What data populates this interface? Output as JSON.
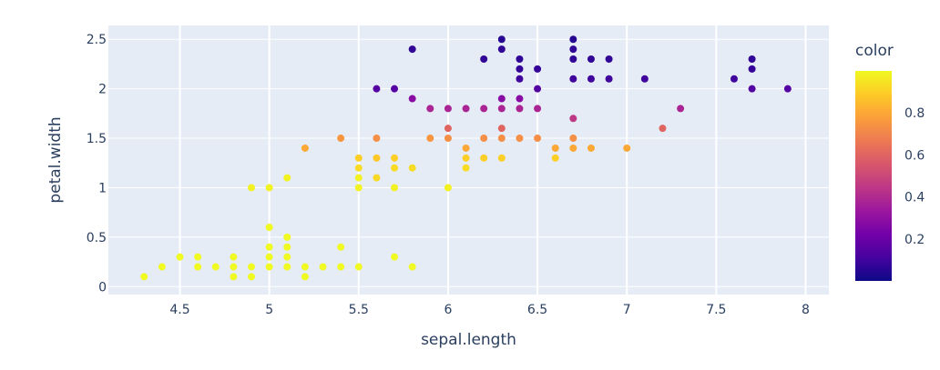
{
  "chart_data": {
    "type": "scatter",
    "title": "",
    "xlabel": "sepal.length",
    "ylabel": "petal.width",
    "xlim": [
      4.1,
      8.13
    ],
    "ylim": [
      -0.08,
      2.64
    ],
    "xticks": [
      4.5,
      5,
      5.5,
      6,
      6.5,
      7,
      7.5,
      8
    ],
    "xtick_labels": [
      "4.5",
      "5",
      "5.5",
      "6",
      "6.5",
      "7",
      "7.5",
      "8"
    ],
    "yticks": [
      0,
      0.5,
      1,
      1.5,
      2,
      2.5
    ],
    "ytick_labels": [
      "0",
      "0.5",
      "1",
      "1.5",
      "2",
      "2.5"
    ],
    "colorbar": {
      "title": "color",
      "range": [
        0,
        1
      ],
      "ticks": [
        0.2,
        0.4,
        0.6,
        0.8
      ],
      "tick_labels": [
        "0.2",
        "0.4",
        "0.6",
        "0.8"
      ],
      "colors": [
        "#0d0887",
        "#46039f",
        "#7201a8",
        "#9c179e",
        "#bd3786",
        "#d8576b",
        "#ed7953",
        "#fb9f3a",
        "#fdca26",
        "#f0f921"
      ]
    },
    "points": [
      {
        "x": 4.3,
        "y": 0.1,
        "c": 1.0
      },
      {
        "x": 4.4,
        "y": 0.2,
        "c": 1.0
      },
      {
        "x": 4.5,
        "y": 0.3,
        "c": 1.0
      },
      {
        "x": 4.6,
        "y": 0.3,
        "c": 1.0
      },
      {
        "x": 4.6,
        "y": 0.2,
        "c": 1.0
      },
      {
        "x": 4.7,
        "y": 0.2,
        "c": 1.0
      },
      {
        "x": 4.8,
        "y": 0.3,
        "c": 1.0
      },
      {
        "x": 4.8,
        "y": 0.2,
        "c": 1.0
      },
      {
        "x": 4.8,
        "y": 0.1,
        "c": 1.0
      },
      {
        "x": 4.9,
        "y": 0.2,
        "c": 1.0
      },
      {
        "x": 4.9,
        "y": 0.1,
        "c": 1.0
      },
      {
        "x": 4.9,
        "y": 1.0,
        "c": 0.98
      },
      {
        "x": 5.0,
        "y": 0.2,
        "c": 1.0
      },
      {
        "x": 5.0,
        "y": 0.3,
        "c": 1.0
      },
      {
        "x": 5.0,
        "y": 0.4,
        "c": 1.0
      },
      {
        "x": 5.0,
        "y": 0.6,
        "c": 1.0
      },
      {
        "x": 5.0,
        "y": 1.0,
        "c": 0.98
      },
      {
        "x": 5.1,
        "y": 0.2,
        "c": 1.0
      },
      {
        "x": 5.1,
        "y": 0.3,
        "c": 1.0
      },
      {
        "x": 5.1,
        "y": 0.4,
        "c": 1.0
      },
      {
        "x": 5.1,
        "y": 0.5,
        "c": 1.0
      },
      {
        "x": 5.1,
        "y": 1.1,
        "c": 0.98
      },
      {
        "x": 5.2,
        "y": 0.2,
        "c": 1.0
      },
      {
        "x": 5.2,
        "y": 0.1,
        "c": 1.0
      },
      {
        "x": 5.2,
        "y": 1.4,
        "c": 0.8
      },
      {
        "x": 5.3,
        "y": 0.2,
        "c": 1.0
      },
      {
        "x": 5.4,
        "y": 0.2,
        "c": 1.0
      },
      {
        "x": 5.4,
        "y": 0.4,
        "c": 1.0
      },
      {
        "x": 5.4,
        "y": 1.5,
        "c": 0.75
      },
      {
        "x": 5.5,
        "y": 0.2,
        "c": 1.0
      },
      {
        "x": 5.5,
        "y": 1.0,
        "c": 0.98
      },
      {
        "x": 5.5,
        "y": 1.1,
        "c": 0.98
      },
      {
        "x": 5.5,
        "y": 1.2,
        "c": 0.93
      },
      {
        "x": 5.5,
        "y": 1.3,
        "c": 0.9
      },
      {
        "x": 5.6,
        "y": 1.1,
        "c": 0.92
      },
      {
        "x": 5.6,
        "y": 1.3,
        "c": 0.88
      },
      {
        "x": 5.6,
        "y": 1.5,
        "c": 0.73
      },
      {
        "x": 5.6,
        "y": 2.0,
        "c": 0.15
      },
      {
        "x": 5.7,
        "y": 0.3,
        "c": 1.0
      },
      {
        "x": 5.7,
        "y": 1.0,
        "c": 0.98
      },
      {
        "x": 5.7,
        "y": 1.2,
        "c": 0.93
      },
      {
        "x": 5.7,
        "y": 1.3,
        "c": 0.9
      },
      {
        "x": 5.7,
        "y": 2.0,
        "c": 0.15
      },
      {
        "x": 5.8,
        "y": 0.2,
        "c": 1.0
      },
      {
        "x": 5.8,
        "y": 1.2,
        "c": 0.93
      },
      {
        "x": 5.8,
        "y": 1.9,
        "c": 0.28
      },
      {
        "x": 5.8,
        "y": 2.4,
        "c": 0.07
      },
      {
        "x": 5.9,
        "y": 1.5,
        "c": 0.75
      },
      {
        "x": 5.9,
        "y": 1.8,
        "c": 0.38
      },
      {
        "x": 6.0,
        "y": 1.0,
        "c": 0.98
      },
      {
        "x": 6.0,
        "y": 1.5,
        "c": 0.73
      },
      {
        "x": 6.0,
        "y": 1.6,
        "c": 0.6
      },
      {
        "x": 6.0,
        "y": 1.8,
        "c": 0.38
      },
      {
        "x": 6.1,
        "y": 1.2,
        "c": 0.93
      },
      {
        "x": 6.1,
        "y": 1.3,
        "c": 0.9
      },
      {
        "x": 6.1,
        "y": 1.4,
        "c": 0.8
      },
      {
        "x": 6.1,
        "y": 1.8,
        "c": 0.38
      },
      {
        "x": 6.2,
        "y": 1.3,
        "c": 0.9
      },
      {
        "x": 6.2,
        "y": 1.5,
        "c": 0.73
      },
      {
        "x": 6.2,
        "y": 1.8,
        "c": 0.38
      },
      {
        "x": 6.2,
        "y": 2.3,
        "c": 0.07
      },
      {
        "x": 6.3,
        "y": 1.3,
        "c": 0.9
      },
      {
        "x": 6.3,
        "y": 1.5,
        "c": 0.73
      },
      {
        "x": 6.3,
        "y": 1.6,
        "c": 0.6
      },
      {
        "x": 6.3,
        "y": 1.8,
        "c": 0.38
      },
      {
        "x": 6.3,
        "y": 1.9,
        "c": 0.28
      },
      {
        "x": 6.3,
        "y": 2.4,
        "c": 0.07
      },
      {
        "x": 6.3,
        "y": 2.5,
        "c": 0.05
      },
      {
        "x": 6.4,
        "y": 1.5,
        "c": 0.73
      },
      {
        "x": 6.4,
        "y": 1.8,
        "c": 0.38
      },
      {
        "x": 6.4,
        "y": 1.9,
        "c": 0.28
      },
      {
        "x": 6.4,
        "y": 2.1,
        "c": 0.1
      },
      {
        "x": 6.4,
        "y": 2.2,
        "c": 0.08
      },
      {
        "x": 6.4,
        "y": 2.3,
        "c": 0.07
      },
      {
        "x": 6.5,
        "y": 1.5,
        "c": 0.73
      },
      {
        "x": 6.5,
        "y": 1.8,
        "c": 0.38
      },
      {
        "x": 6.5,
        "y": 2.0,
        "c": 0.15
      },
      {
        "x": 6.5,
        "y": 2.2,
        "c": 0.08
      },
      {
        "x": 6.6,
        "y": 1.3,
        "c": 0.9
      },
      {
        "x": 6.6,
        "y": 1.4,
        "c": 0.8
      },
      {
        "x": 6.7,
        "y": 1.4,
        "c": 0.8
      },
      {
        "x": 6.7,
        "y": 1.5,
        "c": 0.73
      },
      {
        "x": 6.7,
        "y": 1.7,
        "c": 0.45
      },
      {
        "x": 6.7,
        "y": 2.1,
        "c": 0.1
      },
      {
        "x": 6.7,
        "y": 2.3,
        "c": 0.07
      },
      {
        "x": 6.7,
        "y": 2.4,
        "c": 0.07
      },
      {
        "x": 6.7,
        "y": 2.5,
        "c": 0.05
      },
      {
        "x": 6.8,
        "y": 1.4,
        "c": 0.8
      },
      {
        "x": 6.8,
        "y": 2.1,
        "c": 0.1
      },
      {
        "x": 6.8,
        "y": 2.3,
        "c": 0.07
      },
      {
        "x": 6.9,
        "y": 2.1,
        "c": 0.1
      },
      {
        "x": 6.9,
        "y": 2.3,
        "c": 0.07
      },
      {
        "x": 7.0,
        "y": 1.4,
        "c": 0.8
      },
      {
        "x": 7.1,
        "y": 2.1,
        "c": 0.1
      },
      {
        "x": 7.2,
        "y": 1.6,
        "c": 0.6
      },
      {
        "x": 7.3,
        "y": 1.8,
        "c": 0.38
      },
      {
        "x": 7.6,
        "y": 2.1,
        "c": 0.1
      },
      {
        "x": 7.7,
        "y": 2.0,
        "c": 0.15
      },
      {
        "x": 7.7,
        "y": 2.2,
        "c": 0.08
      },
      {
        "x": 7.7,
        "y": 2.3,
        "c": 0.07
      },
      {
        "x": 7.9,
        "y": 2.0,
        "c": 0.15
      }
    ]
  }
}
